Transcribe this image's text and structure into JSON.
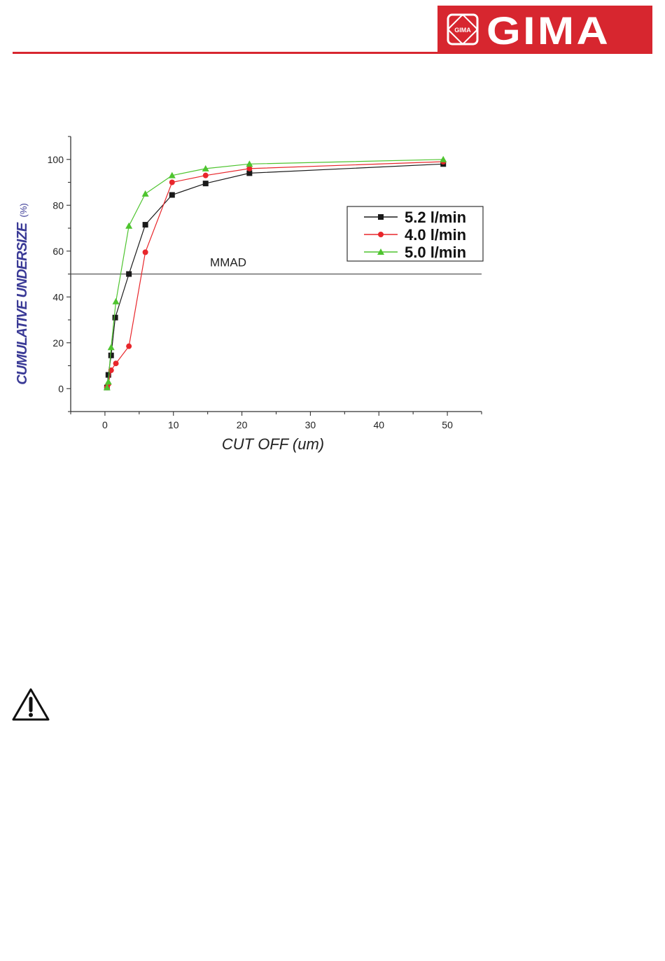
{
  "header": {
    "brand": "GIMA",
    "emblem_text": "GIMA",
    "colors": {
      "brand": "#d7262f",
      "rule": "#d7262f"
    }
  },
  "chart_data": {
    "type": "line",
    "title": "",
    "xlabel": "CUT OFF (um)",
    "ylabel_main": "CUMULATIVE UNDERSIZE",
    "ylabel_unit": "(%)",
    "xlim": [
      -5,
      55
    ],
    "ylim": [
      -10,
      110
    ],
    "x_ticks": [
      0,
      10,
      20,
      30,
      40,
      50
    ],
    "y_ticks": [
      0,
      20,
      40,
      60,
      80,
      100
    ],
    "grid": false,
    "legend_position": "right",
    "series": [
      {
        "name": "5.2 l/min",
        "color": "#1a1a1a",
        "marker": "square",
        "x": [
          0.3,
          0.5,
          0.9,
          1.5,
          3.5,
          5.9,
          9.8,
          14.7,
          21.1,
          49.4
        ],
        "y": [
          0.5,
          6,
          14.5,
          31,
          50,
          71.5,
          84.5,
          89.5,
          94,
          98
        ]
      },
      {
        "name": "4.0 l/min",
        "color": "#e8262b",
        "marker": "circle",
        "x": [
          0.3,
          0.5,
          0.9,
          1.6,
          3.5,
          5.9,
          9.8,
          14.7,
          21.1,
          49.4
        ],
        "y": [
          0.5,
          2,
          8,
          11,
          18.5,
          59.5,
          90,
          93,
          96,
          99
        ]
      },
      {
        "name": "5.0 l/min",
        "color": "#4ec42f",
        "marker": "triangle",
        "x": [
          0.3,
          0.5,
          0.9,
          1.6,
          3.5,
          5.9,
          9.8,
          14.7,
          21.1,
          49.4
        ],
        "y": [
          0.5,
          3,
          18,
          38,
          71,
          85,
          93,
          96,
          98,
          100
        ]
      }
    ],
    "reference_line": {
      "y": 50,
      "label": "MMAD"
    },
    "colors": {
      "axis": "#333333",
      "ylabel": "#3a3a96",
      "reference": "#555555"
    }
  },
  "warning": {
    "icon": "warning-triangle-icon"
  }
}
